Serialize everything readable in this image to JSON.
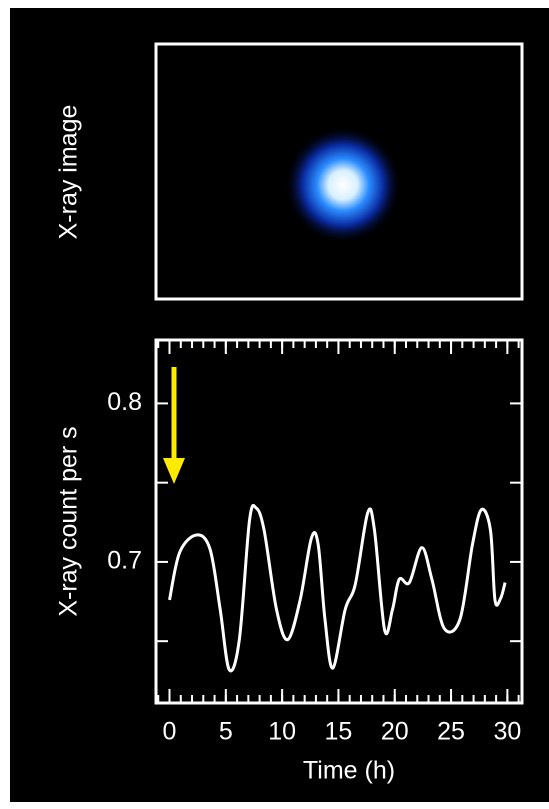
{
  "image_panel": {
    "label": "X-ray image"
  },
  "chart_data": {
    "type": "line",
    "xlabel": "Time (h)",
    "ylabel": "X-ray count per s",
    "x": [
      0,
      0.9,
      2.4,
      3.6,
      4.5,
      5.3,
      6.2,
      7.1,
      7.7,
      8.4,
      9.5,
      10.5,
      11.6,
      12.6,
      13.2,
      13.8,
      14.5,
      15.6,
      16.5,
      17.6,
      18.2,
      19.1,
      19.8,
      20.4,
      21.3,
      22.4,
      23.3,
      24.4,
      25.8,
      26.9,
      27.7,
      28.5,
      28.9,
      29.4,
      29.8
    ],
    "series": [
      {
        "color": "#ffffff",
        "values": [
          0.676,
          0.706,
          0.717,
          0.708,
          0.67,
          0.632,
          0.651,
          0.726,
          0.734,
          0.72,
          0.67,
          0.651,
          0.676,
          0.715,
          0.711,
          0.664,
          0.633,
          0.67,
          0.686,
          0.731,
          0.72,
          0.657,
          0.67,
          0.689,
          0.687,
          0.709,
          0.689,
          0.658,
          0.664,
          0.711,
          0.733,
          0.72,
          0.676,
          0.677,
          0.687
        ]
      }
    ],
    "xlim": [
      -1.2,
      31.3
    ],
    "ylim": [
      0.611,
      0.84
    ],
    "xticks": [
      0,
      5,
      10,
      15,
      20,
      25,
      30
    ],
    "xminor_step": 1,
    "yticks": [
      0.7,
      0.8
    ],
    "yminor_ticks": [
      0.65,
      0.75
    ]
  }
}
